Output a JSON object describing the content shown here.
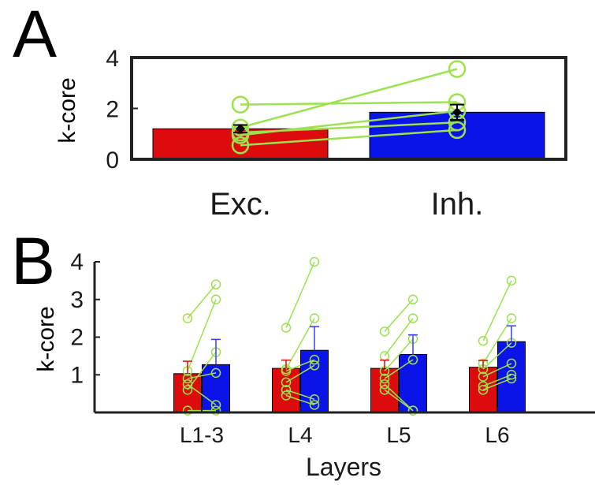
{
  "panels": {
    "a": {
      "letter": "A"
    },
    "b": {
      "letter": "B"
    }
  },
  "colors": {
    "exc": "#dd0c0c",
    "inh": "#0a14e8",
    "individual": "#9be24e",
    "errorbar_b": "#3a3aff"
  },
  "chart_data": [
    {
      "id": "A",
      "type": "bar",
      "ylabel": "k-core",
      "xlabel": "",
      "ylim": [
        0,
        4
      ],
      "yticks": [
        0,
        2,
        4
      ],
      "categories": [
        "Exc.",
        "Inh."
      ],
      "values": [
        1.2,
        1.85
      ],
      "errors": [
        0.15,
        0.3
      ],
      "individual_lines": [
        [
          2.15,
          2.25
        ],
        [
          1.25,
          3.55
        ],
        [
          1.05,
          1.45
        ],
        [
          0.95,
          1.9
        ],
        [
          0.55,
          1.15
        ]
      ],
      "box": true
    },
    {
      "id": "B",
      "type": "bar",
      "ylabel": "k-core",
      "xlabel": "Layers",
      "ylim": [
        0,
        4
      ],
      "yticks": [
        1,
        2,
        3,
        4
      ],
      "categories": [
        "L1-3",
        "L4",
        "L5",
        "L6"
      ],
      "series": [
        {
          "values": [
            1.03,
            1.17,
            1.17,
            1.2
          ],
          "errors": [
            0.33,
            0.22,
            0.22,
            0.18
          ]
        },
        {
          "values": [
            1.27,
            1.65,
            1.54,
            1.88
          ],
          "errors": [
            0.67,
            0.63,
            0.52,
            0.42
          ]
        }
      ],
      "individual_lines": [
        [
          [
            2.5,
            3.4
          ],
          [
            1.1,
            3.0
          ],
          [
            0.9,
            1.05
          ],
          [
            0.75,
            0.2
          ],
          [
            0.6,
            1.6
          ],
          [
            0.05,
            0.05
          ]
        ],
        [
          [
            2.25,
            4.0
          ],
          [
            1.15,
            2.5
          ],
          [
            1.1,
            1.4
          ],
          [
            0.8,
            1.25
          ],
          [
            0.6,
            0.35
          ],
          [
            0.45,
            0.2
          ]
        ],
        [
          [
            2.15,
            3.0
          ],
          [
            1.5,
            2.5
          ],
          [
            1.1,
            1.95
          ],
          [
            0.9,
            1.4
          ],
          [
            0.75,
            0.05
          ],
          [
            0.6,
            0.05
          ]
        ],
        [
          [
            1.9,
            3.5
          ],
          [
            1.3,
            2.5
          ],
          [
            1.15,
            1.85
          ],
          [
            0.95,
            1.3
          ],
          [
            0.7,
            1.0
          ],
          [
            0.6,
            0.9
          ]
        ]
      ],
      "box": false
    }
  ]
}
